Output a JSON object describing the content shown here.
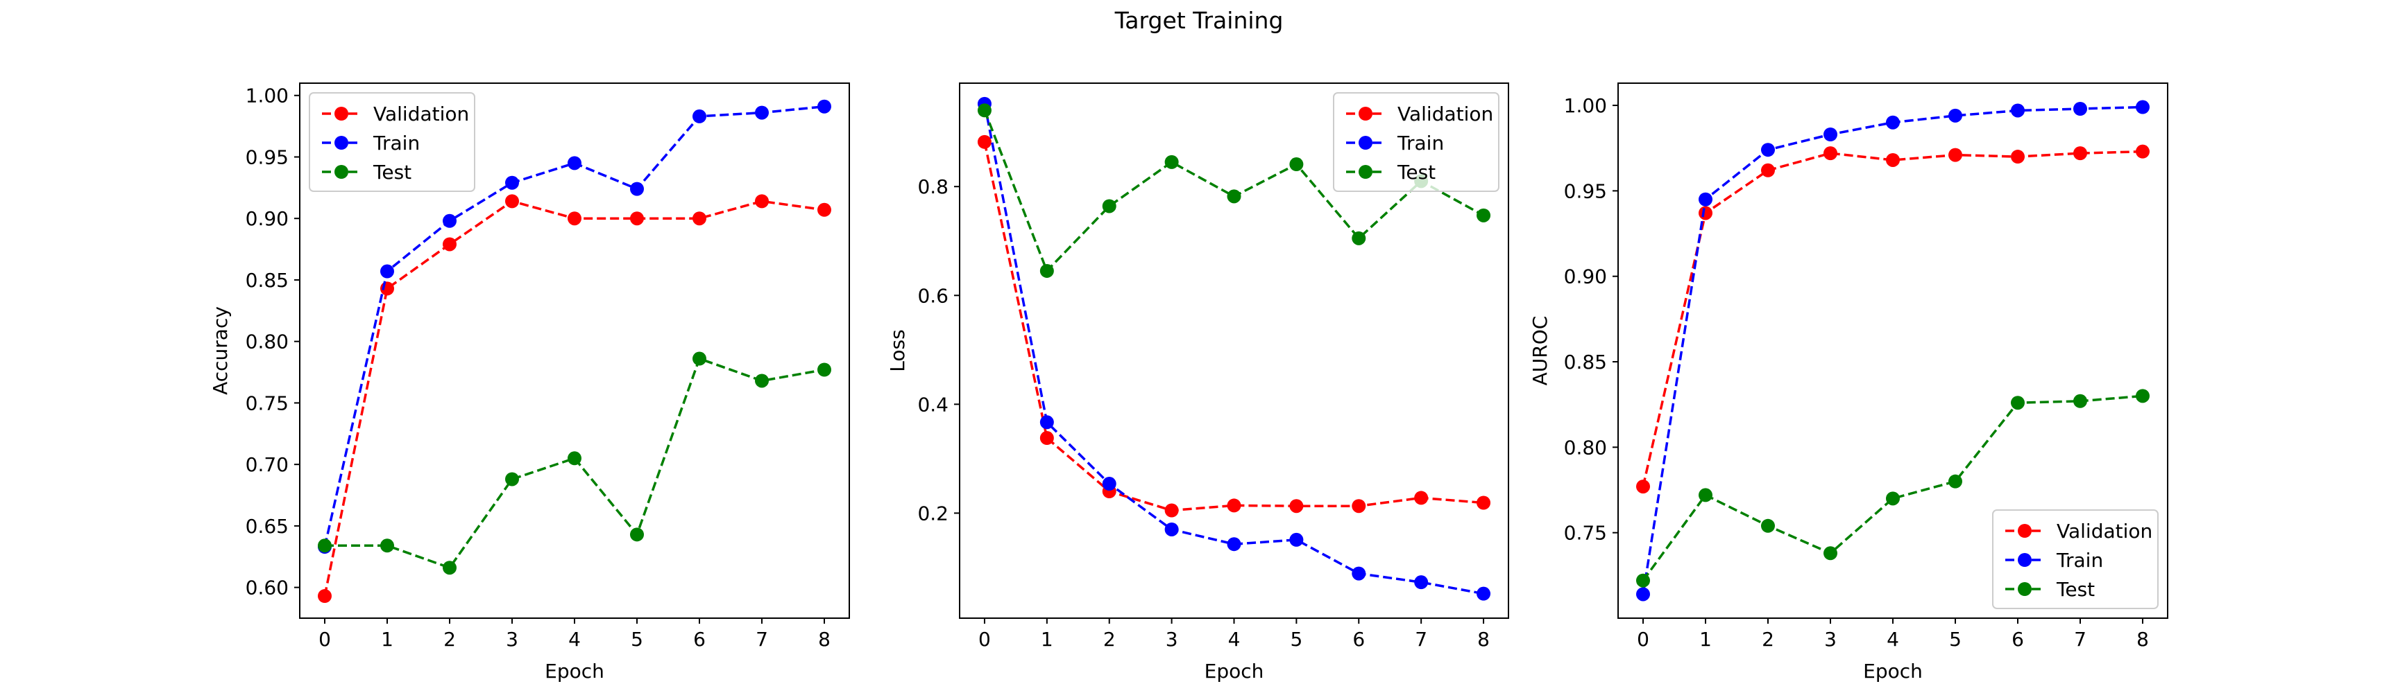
{
  "title": "Target Training",
  "colors": {
    "Validation": "#ff0000",
    "Train": "#0000ff",
    "Test": "#008000"
  },
  "chart_data": [
    {
      "type": "line",
      "title": "",
      "xlabel": "Epoch",
      "ylabel": "Accuracy",
      "x": [
        0,
        1,
        2,
        3,
        4,
        5,
        6,
        7,
        8
      ],
      "xlim": [
        -0.4,
        8.4
      ],
      "ylim": [
        0.575,
        1.01
      ],
      "yticks": [
        "0.60",
        "0.65",
        "0.70",
        "0.75",
        "0.80",
        "0.85",
        "0.90",
        "0.95",
        "1.00"
      ],
      "legend": "upper left",
      "grid": false,
      "series": [
        {
          "name": "Validation",
          "values": [
            0.593,
            0.843,
            0.879,
            0.914,
            0.9,
            0.9,
            0.9,
            0.914,
            0.907
          ]
        },
        {
          "name": "Train",
          "values": [
            0.633,
            0.857,
            0.898,
            0.929,
            0.945,
            0.924,
            0.983,
            0.986,
            0.991
          ]
        },
        {
          "name": "Test",
          "values": [
            0.634,
            0.634,
            0.616,
            0.688,
            0.705,
            0.643,
            0.786,
            0.768,
            0.777
          ]
        }
      ]
    },
    {
      "type": "line",
      "title": "",
      "xlabel": "Epoch",
      "ylabel": "Loss",
      "x": [
        0,
        1,
        2,
        3,
        4,
        5,
        6,
        7,
        8
      ],
      "xlim": [
        -0.4,
        8.4
      ],
      "ylim": [
        0.007,
        0.99
      ],
      "yticks": [
        "0.2",
        "0.4",
        "0.6",
        "0.8"
      ],
      "legend": "upper right",
      "grid": false,
      "series": [
        {
          "name": "Validation",
          "values": [
            0.882,
            0.338,
            0.24,
            0.205,
            0.214,
            0.213,
            0.213,
            0.228,
            0.219
          ]
        },
        {
          "name": "Train",
          "values": [
            0.952,
            0.367,
            0.254,
            0.17,
            0.143,
            0.151,
            0.089,
            0.073,
            0.052
          ]
        },
        {
          "name": "Test",
          "values": [
            0.94,
            0.645,
            0.764,
            0.845,
            0.782,
            0.841,
            0.705,
            0.81,
            0.747
          ]
        }
      ]
    },
    {
      "type": "line",
      "title": "",
      "xlabel": "Epoch",
      "ylabel": "AUROC",
      "x": [
        0,
        1,
        2,
        3,
        4,
        5,
        6,
        7,
        8
      ],
      "xlim": [
        -0.4,
        8.4
      ],
      "ylim": [
        0.7,
        1.013
      ],
      "yticks": [
        "0.75",
        "0.80",
        "0.85",
        "0.90",
        "0.95",
        "1.00"
      ],
      "legend": "lower right",
      "grid": false,
      "series": [
        {
          "name": "Validation",
          "values": [
            0.777,
            0.937,
            0.962,
            0.972,
            0.968,
            0.971,
            0.97,
            0.972,
            0.973
          ]
        },
        {
          "name": "Train",
          "values": [
            0.714,
            0.945,
            0.974,
            0.983,
            0.99,
            0.994,
            0.997,
            0.998,
            0.999
          ]
        },
        {
          "name": "Test",
          "values": [
            0.722,
            0.772,
            0.754,
            0.738,
            0.77,
            0.78,
            0.826,
            0.827,
            0.83
          ]
        }
      ]
    }
  ]
}
